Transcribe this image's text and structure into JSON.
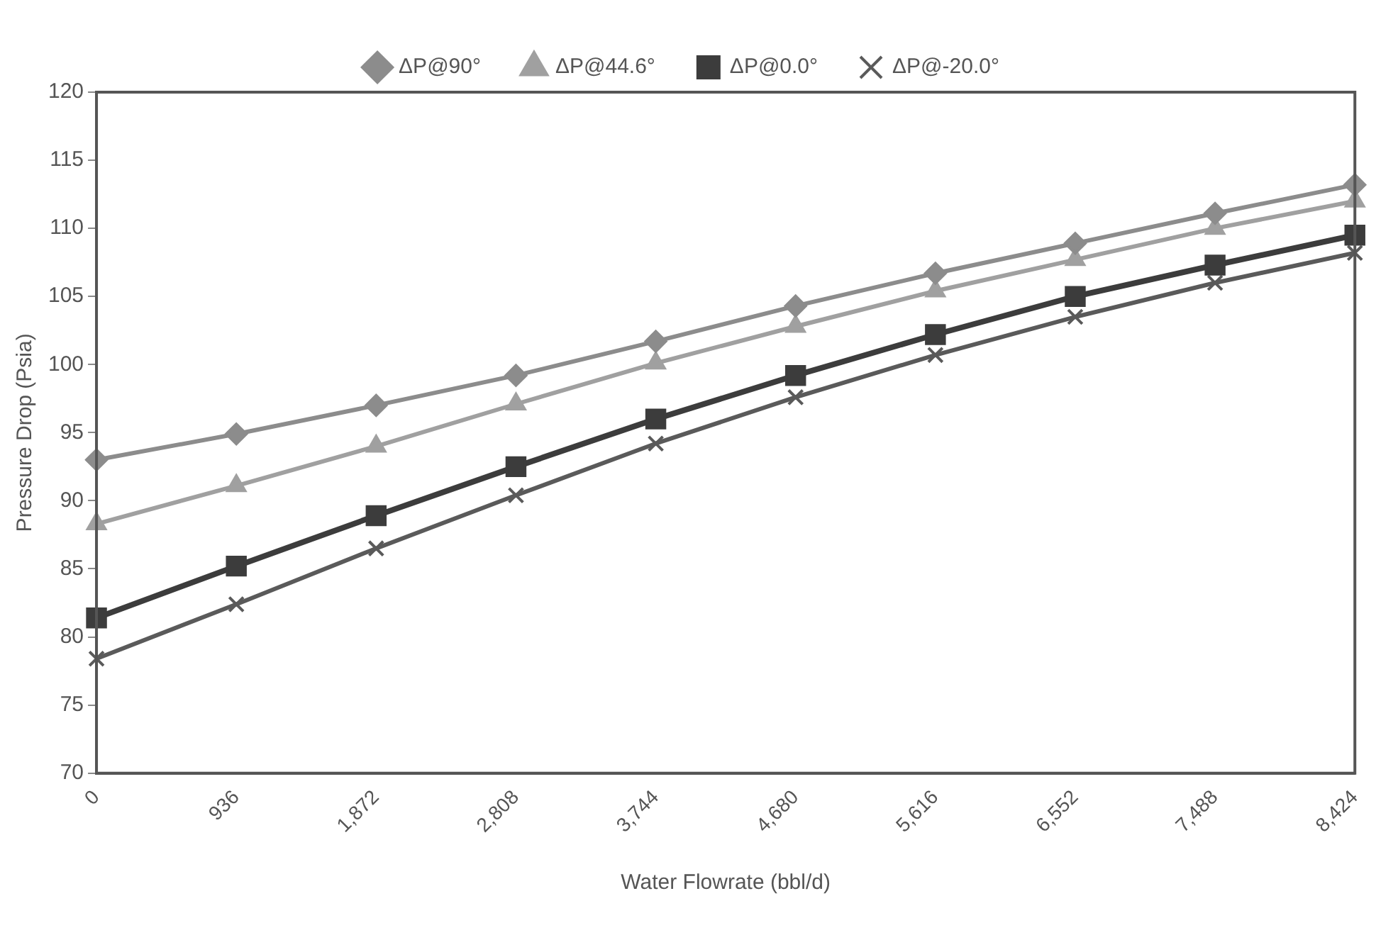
{
  "chart_data": {
    "type": "line",
    "xlabel": "Water Flowrate (bbl/d)",
    "ylabel": "Pressure Drop (Psia)",
    "categories": [
      "0",
      "936",
      "1,872",
      "2,808",
      "3,744",
      "4,680",
      "5,616",
      "6,552",
      "7,488",
      "8,424"
    ],
    "series": [
      {
        "name": "ΔP@90°",
        "color": "#8c8c8c",
        "marker": "diamond",
        "values": [
          93.0,
          94.9,
          97.0,
          99.2,
          101.7,
          104.3,
          106.7,
          108.9,
          111.1,
          113.2
        ]
      },
      {
        "name": "ΔP@44.6°",
        "color": "#a0a0a0",
        "marker": "triangle",
        "values": [
          88.3,
          91.1,
          94.0,
          97.1,
          100.1,
          102.8,
          105.4,
          107.7,
          110.0,
          112.0
        ]
      },
      {
        "name": "ΔP@0.0°",
        "color": "#3c3c3c",
        "marker": "square",
        "values": [
          81.4,
          85.2,
          88.9,
          92.5,
          96.0,
          99.2,
          102.2,
          105.0,
          107.3,
          109.5
        ]
      },
      {
        "name": "ΔP@-20.0°",
        "color": "#5a5a5a",
        "marker": "cross",
        "values": [
          78.4,
          82.4,
          86.5,
          90.4,
          94.2,
          97.6,
          100.7,
          103.5,
          106.0,
          108.2
        ]
      }
    ],
    "ylim": [
      70,
      120
    ],
    "yticks": [
      70,
      75,
      80,
      85,
      90,
      95,
      100,
      105,
      110,
      115,
      120
    ],
    "grid": false,
    "legend": "top",
    "line_style": "solid"
  }
}
